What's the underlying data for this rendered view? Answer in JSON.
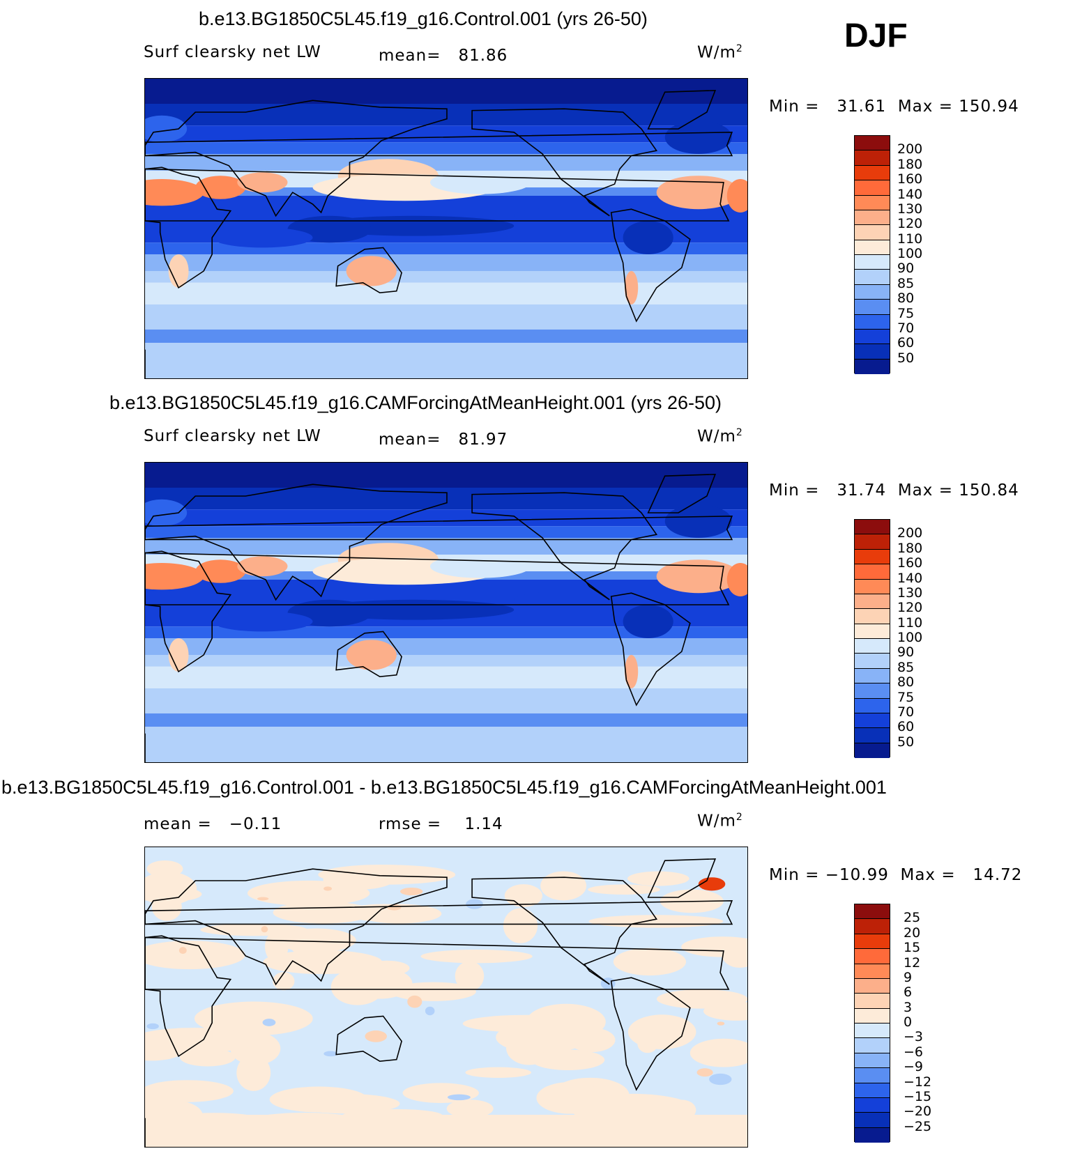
{
  "season": "DJF",
  "chart_data": [
    {
      "type": "heatmap",
      "title": "b.e13.BG1850C5L45.f19_g16.Control.001 (yrs 26-50)",
      "variable": "Surf clearsky net LW",
      "mean_label": "mean=",
      "mean": "81.86",
      "units": "W/m",
      "units_sup": "2",
      "min_label": "Min =",
      "min": "31.61",
      "max_label": "Max =",
      "max": "150.94",
      "levels": [
        "200",
        "180",
        "160",
        "140",
        "130",
        "120",
        "110",
        "100",
        "90",
        "85",
        "80",
        "75",
        "70",
        "60",
        "50"
      ],
      "colors": [
        "#8c0d0d",
        "#bd2107",
        "#e83c0b",
        "#ff6a3a",
        "#ff8a57",
        "#fcaf8a",
        "#fdd3b5",
        "#fdebd9",
        "#d6e9fb",
        "#b2d1fa",
        "#88b3f7",
        "#5a8ef2",
        "#2d64ec",
        "#1440d9",
        "#0830b8",
        "#071b8f"
      ],
      "blend": 1.0
    },
    {
      "type": "heatmap",
      "title": "b.e13.BG1850C5L45.f19_g16.CAMForcingAtMeanHeight.001 (yrs 26-50)",
      "variable": "Surf clearsky net LW",
      "mean_label": "mean=",
      "mean": "81.97",
      "units": "W/m",
      "units_sup": "2",
      "min_label": "Min =",
      "min": "31.74",
      "max_label": "Max =",
      "max": "150.84",
      "levels": [
        "200",
        "180",
        "160",
        "140",
        "130",
        "120",
        "110",
        "100",
        "90",
        "85",
        "80",
        "75",
        "70",
        "60",
        "50"
      ],
      "colors": [
        "#8c0d0d",
        "#bd2107",
        "#e83c0b",
        "#ff6a3a",
        "#ff8a57",
        "#fcaf8a",
        "#fdd3b5",
        "#fdebd9",
        "#d6e9fb",
        "#b2d1fa",
        "#88b3f7",
        "#5a8ef2",
        "#2d64ec",
        "#1440d9",
        "#0830b8",
        "#071b8f"
      ],
      "blend": 1.0
    },
    {
      "type": "heatmap",
      "title": "b.e13.BG1850C5L45.f19_g16.Control.001 - b.e13.BG1850C5L45.f19_g16.CAMForcingAtMeanHeight.001",
      "mean_label": "mean =",
      "mean": "−0.11",
      "rmse_label": "rmse =",
      "rmse": "1.14",
      "units": "W/m",
      "units_sup": "2",
      "min_label": "Min =",
      "min": "−10.99",
      "max_label": "Max =",
      "max": "14.72",
      "levels": [
        "25",
        "20",
        "15",
        "12",
        "9",
        "6",
        "3",
        "0",
        "−3",
        "−6",
        "−9",
        "−12",
        "−15",
        "−20",
        "−25"
      ],
      "colors": [
        "#8c0d0d",
        "#bd2107",
        "#e83c0b",
        "#ff6a3a",
        "#ff8a57",
        "#fcaf8a",
        "#fdd3b5",
        "#fdebd9",
        "#d6e9fb",
        "#b2d1fa",
        "#88b3f7",
        "#5a8ef2",
        "#2d64ec",
        "#1440d9",
        "#0830b8",
        "#071b8f"
      ],
      "blend": 0.0
    }
  ]
}
